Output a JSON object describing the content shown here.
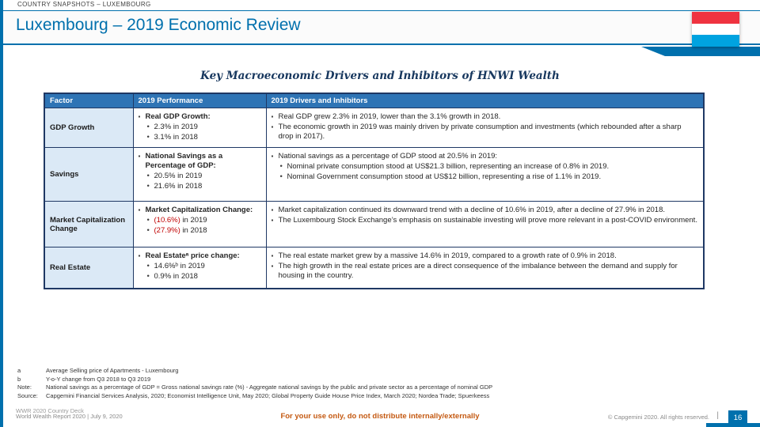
{
  "slide": {
    "eyebrow": "COUNTRY SNAPSHOTS – LUXEMBOURG",
    "title": "Luxembourg – 2019 Economic Review",
    "section_title": "Key Macroeconomic Drivers and Inhibitors of HNWI Wealth"
  },
  "flag": {
    "country": "Luxembourg",
    "stripes": [
      "#EF3340",
      "#FFFFFF",
      "#00A3E0"
    ]
  },
  "colors": {
    "accent": "#0070AD",
    "table_header_bg": "#2E74B5",
    "table_border": "#1F3864",
    "factor_bg": "#DBE9F6",
    "negative": "#C00000",
    "notice": "#C45911"
  },
  "table": {
    "headers": [
      "Factor",
      "2019 Performance",
      "2019 Drivers and Inhibitors"
    ],
    "rows": [
      {
        "factor": "GDP Growth",
        "performance": [
          {
            "level": 1,
            "bold": true,
            "text": "Real GDP Growth:"
          },
          {
            "level": 2,
            "text": "2.3% in 2019"
          },
          {
            "level": 2,
            "text": "3.1% in 2018"
          }
        ],
        "drivers": [
          {
            "level": 1,
            "text": "Real GDP grew 2.3% in 2019, lower than the 3.1% growth in 2018."
          },
          {
            "level": 1,
            "text": "The economic growth in 2019 was mainly driven by private consumption and investments (which rebounded after a sharp drop in 2017)."
          }
        ]
      },
      {
        "factor": "Savings",
        "performance": [
          {
            "level": 1,
            "bold": true,
            "text": "National Savings as a Percentage of GDP:"
          },
          {
            "level": 2,
            "text": "20.5% in 2019"
          },
          {
            "level": 2,
            "text": "21.6% in 2018"
          }
        ],
        "drivers": [
          {
            "level": 1,
            "text": "National savings as a percentage of GDP stood at 20.5% in 2019:"
          },
          {
            "level": 2,
            "text": "Nominal private consumption stood at US$21.3 billion, representing an increase of 0.8% in 2019."
          },
          {
            "level": 2,
            "text": "Nominal Government consumption stood at US$12 billion, representing a rise of 1.1% in 2019."
          }
        ]
      },
      {
        "factor": "Market Capitalization Change",
        "performance": [
          {
            "level": 1,
            "bold": true,
            "text": "Market Capitalization Change:"
          },
          {
            "level": 2,
            "neg": "(10.6%)",
            "text": " in 2019"
          },
          {
            "level": 2,
            "neg": "(27.9%)",
            "text": " in 2018"
          }
        ],
        "drivers": [
          {
            "level": 1,
            "text": "Market capitalization continued its downward trend with a decline of 10.6% in 2019, after a decline of 27.9% in 2018."
          },
          {
            "level": 1,
            "text": "The Luxembourg Stock Exchange’s emphasis on sustainable investing will prove more relevant in a post-COVID environment."
          }
        ]
      },
      {
        "factor": "Real Estate",
        "performance": [
          {
            "level": 1,
            "bold": true,
            "text": "Real Estateᵃ price change:"
          },
          {
            "level": 2,
            "text": "14.6%ᵇ in 2019"
          },
          {
            "level": 2,
            "text": "0.9% in 2018"
          }
        ],
        "drivers": [
          {
            "level": 1,
            "text": "The real estate market grew by a massive 14.6% in 2019, compared to a growth rate of 0.9% in 2018."
          },
          {
            "level": 1,
            "text": "The high growth in the real estate prices are a direct consequence of the imbalance between the demand and supply for housing in the country."
          }
        ]
      }
    ]
  },
  "footnotes": [
    {
      "label": "a",
      "text": "Average Selling price of Apartments - Luxembourg"
    },
    {
      "label": "b",
      "text": "Y-o-Y change from Q3 2018 to Q3 2019"
    },
    {
      "label": "Note:",
      "text": "National savings as a percentage of GDP = Gross national savings rate (%) - Aggregate national savings by the public and private sector as a percentage of nominal GDP"
    },
    {
      "label": "Source:",
      "text": "Capgemini Financial Services Analysis, 2020; Economist Intelligence Unit, May 2020; Global Property Guide House Price Index, March 2020; Nordea Trade; Spuerkeess"
    }
  ],
  "footer": {
    "watermark": "WWR 2020 Country Deck",
    "report_line": "World Wealth Report 2020 | July 9, 2020",
    "notice": "For your use only, do not distribute internally/externally",
    "copyright": "© Capgemini 2020. All rights reserved.",
    "divider": "|",
    "page_number": "16"
  }
}
